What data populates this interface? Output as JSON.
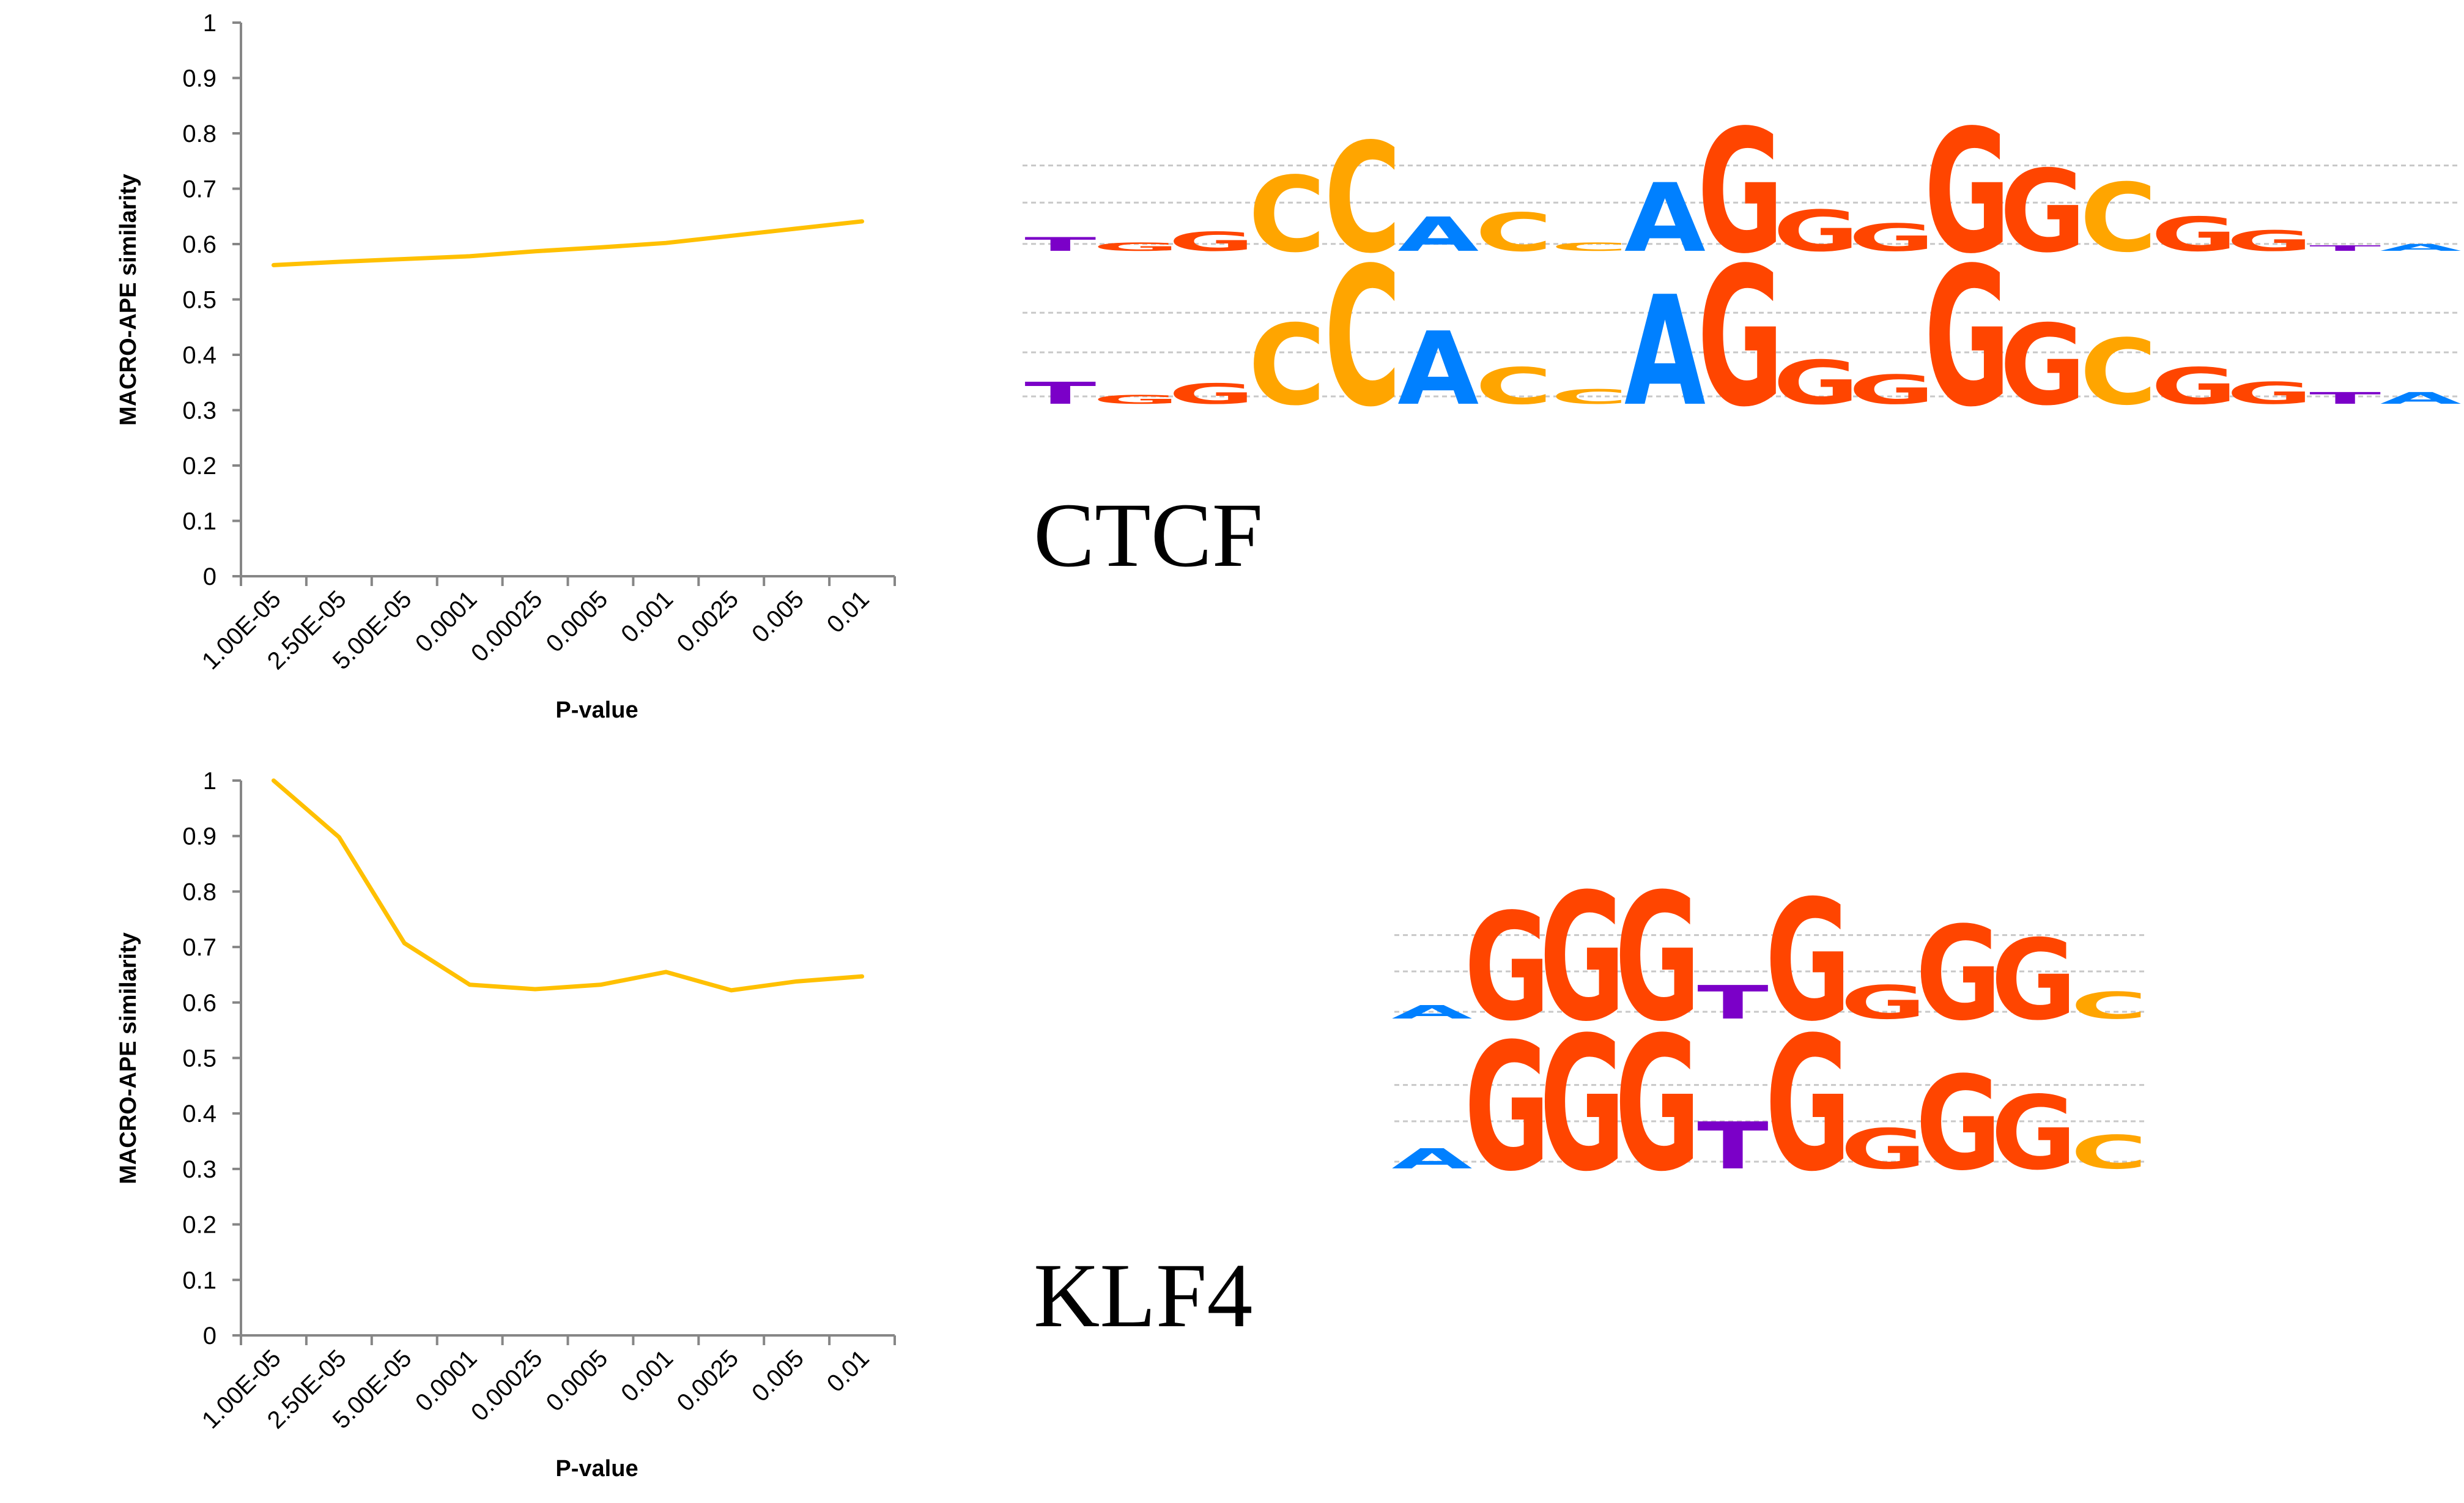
{
  "chart_data": [
    {
      "type": "line",
      "name": "CTCF",
      "title": "",
      "xlabel": "P-value",
      "ylabel": "MACRO-APE similarity",
      "categories": [
        "1.00E-05",
        "2.50E-05",
        "5.00E-05",
        "0.0001",
        "0.00025",
        "0.0005",
        "0.001",
        "0.0025",
        "0.005",
        "0.01"
      ],
      "series": [
        {
          "name": "CTCF",
          "color": "#FFC000",
          "values": [
            0.562,
            0.568,
            0.573,
            0.578,
            0.587,
            0.594,
            0.602,
            0.615,
            0.628,
            0.641
          ]
        }
      ],
      "ylim": [
        0,
        1
      ],
      "yticks": [
        "0",
        "0.1",
        "0.2",
        "0.3",
        "0.4",
        "0.5",
        "0.6",
        "0.7",
        "0.8",
        "0.9",
        "1"
      ],
      "grid": false,
      "legend": "none"
    },
    {
      "type": "line",
      "name": "KLF4",
      "title": "",
      "xlabel": "P-value",
      "ylabel": "MACRO-APE similarity",
      "categories": [
        "1.00E-05",
        "2.50E-05",
        "5.00E-05",
        "0.0001",
        "0.00025",
        "0.0005",
        "0.001",
        "0.0025",
        "0.005",
        "0.01"
      ],
      "series": [
        {
          "name": "KLF4",
          "color": "#FFC000",
          "values": [
            1.0,
            0.898,
            0.707,
            0.632,
            0.624,
            0.632,
            0.655,
            0.622,
            0.638,
            0.647
          ]
        }
      ],
      "ylim": [
        0,
        1
      ],
      "yticks": [
        "0",
        "0.1",
        "0.2",
        "0.3",
        "0.4",
        "0.5",
        "0.6",
        "0.7",
        "0.8",
        "0.9",
        "1"
      ],
      "grid": false,
      "legend": "none"
    }
  ],
  "panels": [
    {
      "label": "CTCF",
      "logos": [
        {
          "name": "CTCF-logo-1",
          "letters": [
            [
              "T",
              0.1
            ],
            [
              "G",
              0.06
            ],
            [
              "G",
              0.14
            ],
            [
              "C",
              0.55
            ],
            [
              "C",
              0.8
            ],
            [
              "A",
              0.25
            ],
            [
              "C",
              0.28
            ],
            [
              "C",
              0.06
            ],
            [
              "A",
              0.5
            ],
            [
              "G",
              0.9
            ],
            [
              "G",
              0.3
            ],
            [
              "G",
              0.2
            ],
            [
              "G",
              0.9
            ],
            [
              "G",
              0.6
            ],
            [
              "C",
              0.5
            ],
            [
              "G",
              0.25
            ],
            [
              "G",
              0.15
            ],
            [
              "T",
              0.04
            ],
            [
              "A",
              0.05
            ]
          ]
        },
        {
          "name": "CTCF-logo-2",
          "letters": [
            [
              "T",
              0.15
            ],
            [
              "G",
              0.06
            ],
            [
              "G",
              0.14
            ],
            [
              "C",
              0.55
            ],
            [
              "C",
              0.95
            ],
            [
              "A",
              0.5
            ],
            [
              "C",
              0.25
            ],
            [
              "C",
              0.1
            ],
            [
              "A",
              0.75
            ],
            [
              "G",
              0.95
            ],
            [
              "G",
              0.3
            ],
            [
              "G",
              0.2
            ],
            [
              "G",
              0.95
            ],
            [
              "G",
              0.55
            ],
            [
              "C",
              0.45
            ],
            [
              "G",
              0.25
            ],
            [
              "G",
              0.15
            ],
            [
              "T",
              0.08
            ],
            [
              "A",
              0.08
            ]
          ]
        }
      ]
    },
    {
      "label": "KLF4",
      "logos": [
        {
          "name": "KLF4-logo-1",
          "letters": [
            [
              "A",
              0.1
            ],
            [
              "G",
              0.8
            ],
            [
              "G",
              0.95
            ],
            [
              "G",
              0.95
            ],
            [
              "T",
              0.25
            ],
            [
              "G",
              0.9
            ],
            [
              "G",
              0.25
            ],
            [
              "G",
              0.7
            ],
            [
              "G",
              0.6
            ],
            [
              "C",
              0.2
            ]
          ]
        },
        {
          "name": "KLF4-logo-2",
          "letters": [
            [
              "A",
              0.15
            ],
            [
              "G",
              0.95
            ],
            [
              "G",
              1.0
            ],
            [
              "G",
              1.0
            ],
            [
              "T",
              0.35
            ],
            [
              "G",
              1.0
            ],
            [
              "G",
              0.3
            ],
            [
              "G",
              0.7
            ],
            [
              "G",
              0.55
            ],
            [
              "C",
              0.25
            ]
          ]
        }
      ]
    }
  ],
  "nucleotide_colors": {
    "A": "#0080FF",
    "C": "#FFA500",
    "G": "#FF4500",
    "T": "#7B00C8"
  },
  "axis_color": "#868686"
}
